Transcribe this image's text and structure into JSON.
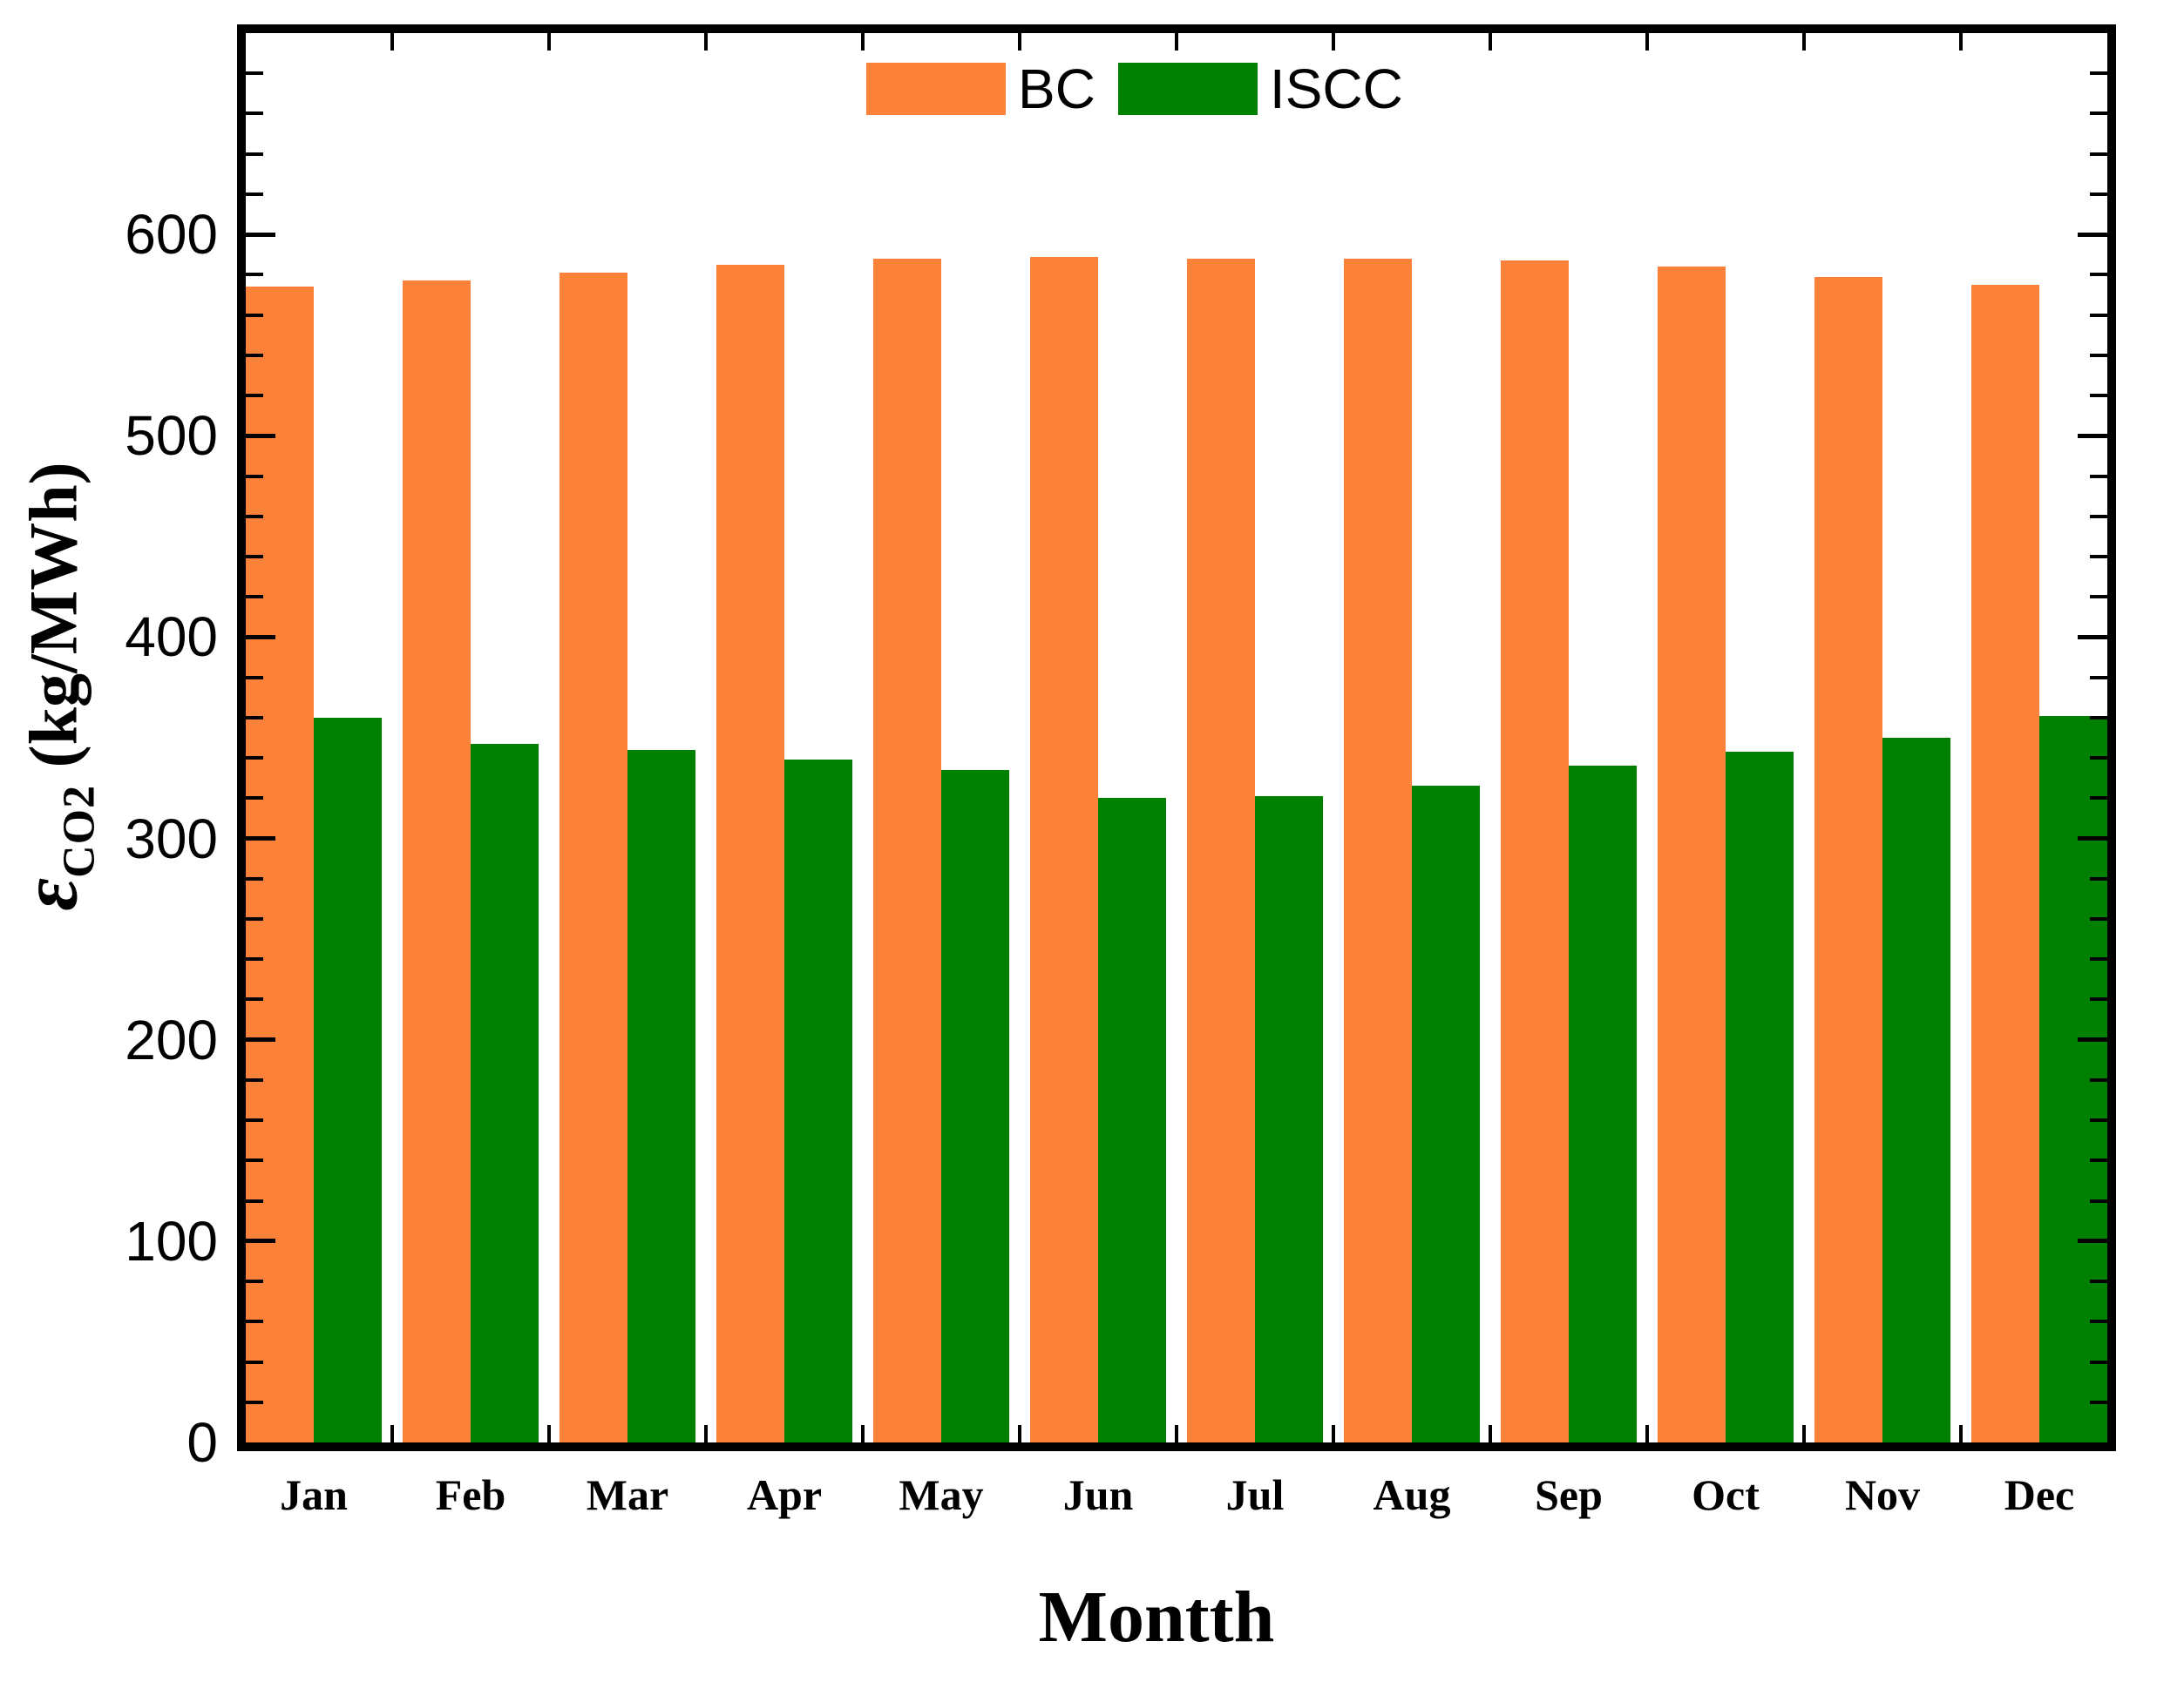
{
  "chart_data": {
    "type": "bar",
    "title": "",
    "xlabel": "Montth",
    "ylabel": "εCO2 (kg/MWh)",
    "ylabel_symbol": "ε",
    "ylabel_subscript": "CO2",
    "ylabel_units": "(kg/MWh)",
    "categories": [
      "Jan",
      "Feb",
      "Mar",
      "Apr",
      "May",
      "Jun",
      "Jul",
      "Aug",
      "Sep",
      "Oct",
      "Nov",
      "Dec"
    ],
    "series": [
      {
        "name": "BC",
        "color": "#FD8239",
        "values": [
          574,
          577,
          581,
          585,
          588,
          589,
          588,
          588,
          587,
          584,
          579,
          575
        ]
      },
      {
        "name": "ISCC",
        "color": "#008000",
        "values": [
          360,
          347,
          344,
          339,
          334,
          320,
          321,
          326,
          336,
          343,
          350,
          361
        ]
      }
    ],
    "ylim": [
      0,
      700
    ],
    "ytick_values": [
      0,
      100,
      200,
      300,
      400,
      500,
      600
    ],
    "ytick_major": 100,
    "ytick_minor": 20,
    "grid": false,
    "legend_position": "top-center",
    "axis_color": "#000000",
    "background": "#FFFFFF"
  }
}
